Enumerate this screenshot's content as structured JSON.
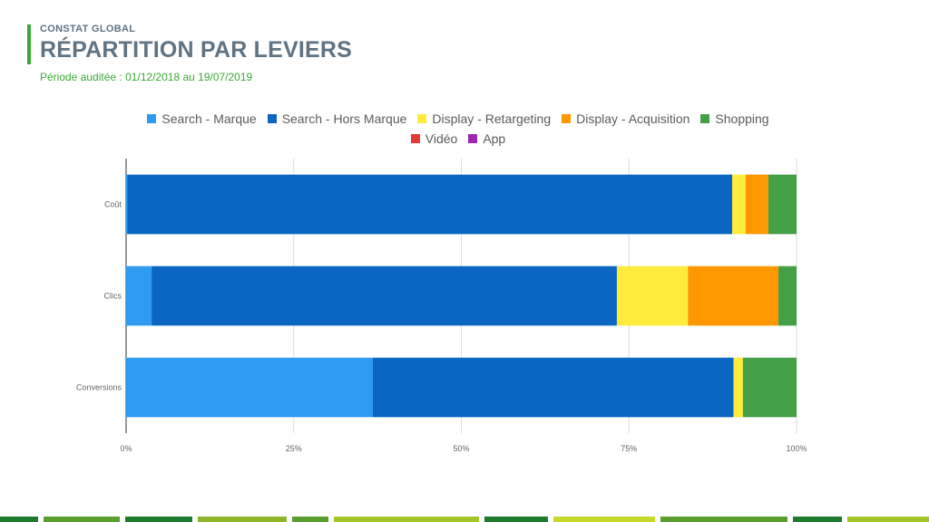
{
  "header": {
    "eyebrow": "CONSTAT GLOBAL",
    "title": "RÉPARTITION PAR LEVIERS",
    "subtitle": "Période auditée : 01/12/2018 au 19/07/2019"
  },
  "colors": {
    "accent_green": "#3aa935",
    "title_gray": "#5f7382"
  },
  "chart_data": {
    "type": "bar",
    "orientation": "horizontal",
    "stacked": "percent",
    "categories": [
      "Coût",
      "Clics",
      "Conversions"
    ],
    "series": [
      {
        "name": "Search - Marque",
        "color": "#2f9bf0",
        "values": [
          0.2,
          3.8,
          36.8
        ]
      },
      {
        "name": "Search - Hors Marque",
        "color": "#0a66c2",
        "values": [
          90.2,
          69.4,
          53.8
        ]
      },
      {
        "name": "Display - Retargeting",
        "color": "#ffeb3b",
        "values": [
          2.0,
          10.6,
          1.4
        ]
      },
      {
        "name": "Display - Acquisition",
        "color": "#ff9800",
        "values": [
          3.4,
          13.5,
          0.0
        ]
      },
      {
        "name": "Shopping",
        "color": "#43a047",
        "values": [
          4.2,
          2.7,
          8.0
        ]
      },
      {
        "name": "Vidéo",
        "color": "#e53935",
        "values": [
          0,
          0,
          0
        ]
      },
      {
        "name": "App",
        "color": "#9c27b0",
        "values": [
          0,
          0,
          0
        ]
      }
    ],
    "x_ticks": [
      "0%",
      "25%",
      "50%",
      "75%",
      "100%"
    ],
    "xlim": [
      0,
      100
    ],
    "grid": true,
    "legend_position": "top"
  },
  "footer_stripe_colors": [
    "#1e7a2e",
    "#5a9e2f",
    "#1e7a2e",
    "#8fb52a",
    "#5a9e2f",
    "#a4c62a",
    "#1e7a2e",
    "#c6d92a",
    "#5a9e2f",
    "#1e7a2e",
    "#a4c62a"
  ]
}
